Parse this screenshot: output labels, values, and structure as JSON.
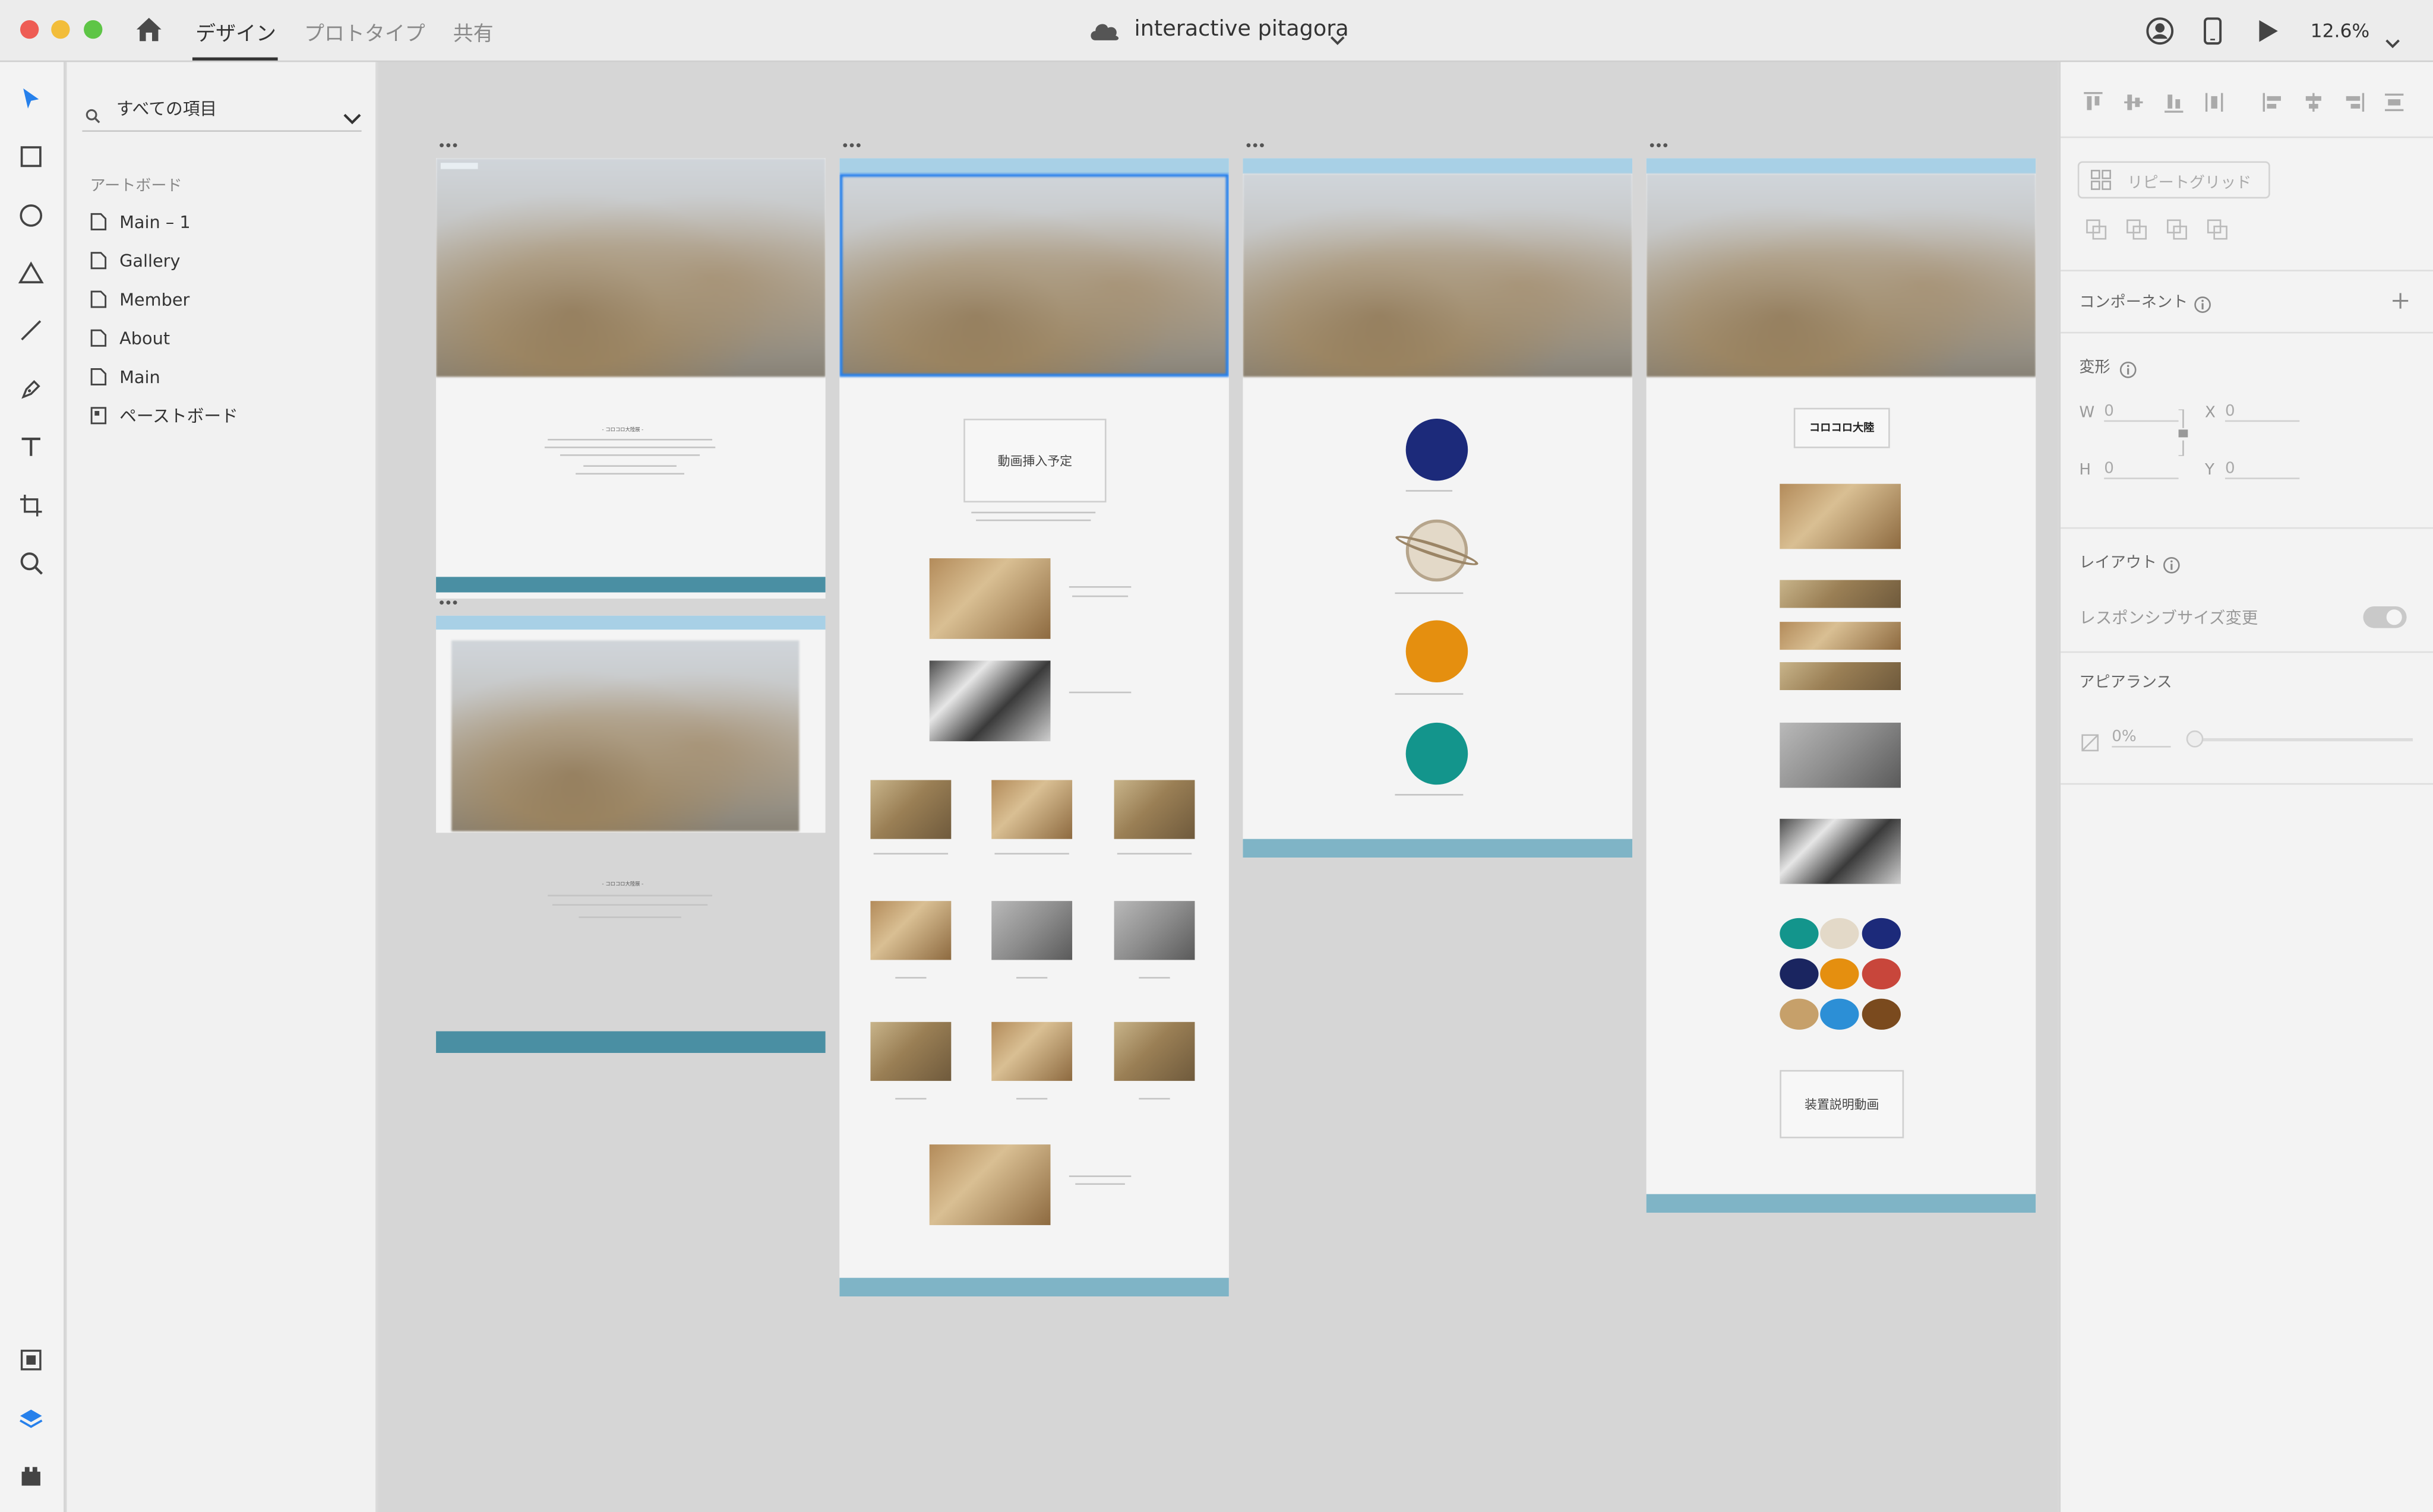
{
  "window": {
    "tabs": [
      "デザイン",
      "プロトタイプ",
      "共有"
    ],
    "active_tab": "デザイン",
    "document_title": "interactive pitagora",
    "zoom": "12.6%"
  },
  "layers": {
    "search_placeholder": "すべての項目",
    "section_title": "アートボード",
    "items": [
      "Main – 1",
      "Gallery",
      "Member",
      "About",
      "Main",
      "ペーストボード"
    ]
  },
  "canvas": {
    "artboard_dots": "•••",
    "video_placeholder": "動画挿入予定",
    "logo_text": "コロコロ大陸",
    "device_video_label": "装置説明動画",
    "section_heading": "- コロコロ大陸展 -"
  },
  "properties": {
    "repeat_grid": "リピートグリッド",
    "component": "コンポーネント",
    "transform": "変形",
    "w_label": "W",
    "w_value": "0",
    "x_label": "X",
    "x_value": "0",
    "h_label": "H",
    "h_value": "0",
    "y_label": "Y",
    "y_value": "0",
    "layout": "レイアウト",
    "responsive": "レスポンシブサイズ変更",
    "appearance": "アピアランス",
    "opacity": "0%"
  },
  "colors": {
    "accent": "#2680eb",
    "footer": "#4a8fa3",
    "planet_navy": "#1c2a7a",
    "planet_orange": "#e58f0f",
    "planet_teal": "#13958c"
  }
}
